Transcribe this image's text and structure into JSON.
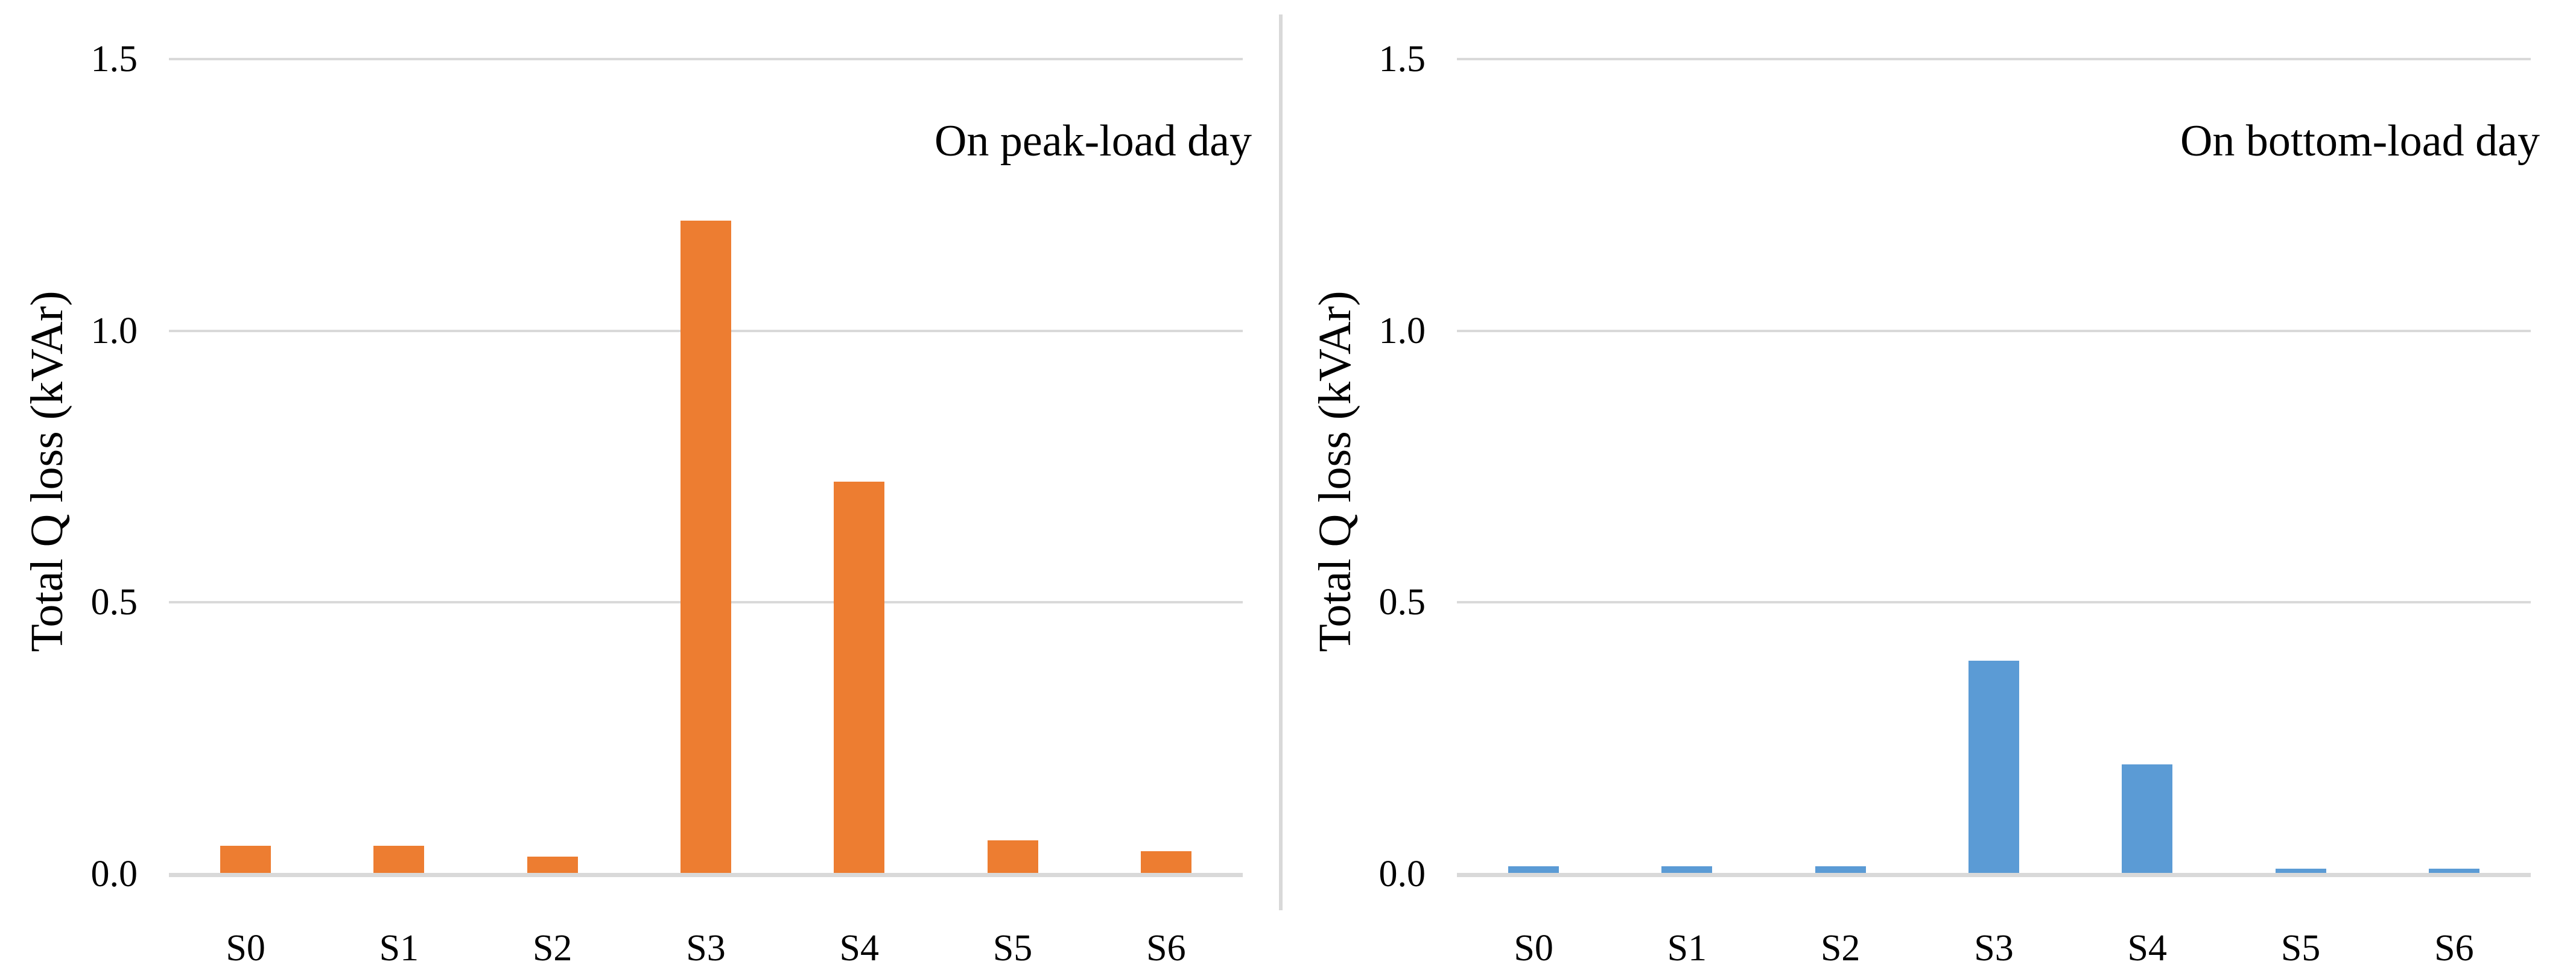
{
  "figure": {
    "background": "#ffffff",
    "divider_color": "#d9d9d9",
    "gridline_color": "#d9d9d9",
    "text_color": "#000000"
  },
  "chart_data": [
    {
      "type": "bar",
      "title": "On peak-load day",
      "ylabel": "Total Q loss (kVAr)",
      "xlabel": "",
      "categories": [
        "S0",
        "S1",
        "S2",
        "S3",
        "S4",
        "S5",
        "S6"
      ],
      "values": [
        0.05,
        0.05,
        0.03,
        1.2,
        0.72,
        0.06,
        0.04
      ],
      "bar_color": "#ED7D31",
      "ylim": [
        0,
        1.5
      ],
      "yticks": [
        0.0,
        0.5,
        1.0,
        1.5
      ],
      "ytick_labels": [
        "0.0",
        "0.5",
        "1.0",
        "1.5"
      ],
      "grid": true,
      "legend": "none"
    },
    {
      "type": "bar",
      "title": "On bottom-load day",
      "ylabel": "Total Q loss (kVAr)",
      "xlabel": "",
      "categories": [
        "S0",
        "S1",
        "S2",
        "S3",
        "S4",
        "S5",
        "S6"
      ],
      "values": [
        0.012,
        0.012,
        0.012,
        0.39,
        0.2,
        0.008,
        0.008
      ],
      "bar_color": "#5B9BD5",
      "ylim": [
        0,
        1.5
      ],
      "yticks": [
        0.0,
        0.5,
        1.0,
        1.5
      ],
      "ytick_labels": [
        "0.0",
        "0.5",
        "1.0",
        "1.5"
      ],
      "grid": true,
      "legend": "none"
    }
  ]
}
